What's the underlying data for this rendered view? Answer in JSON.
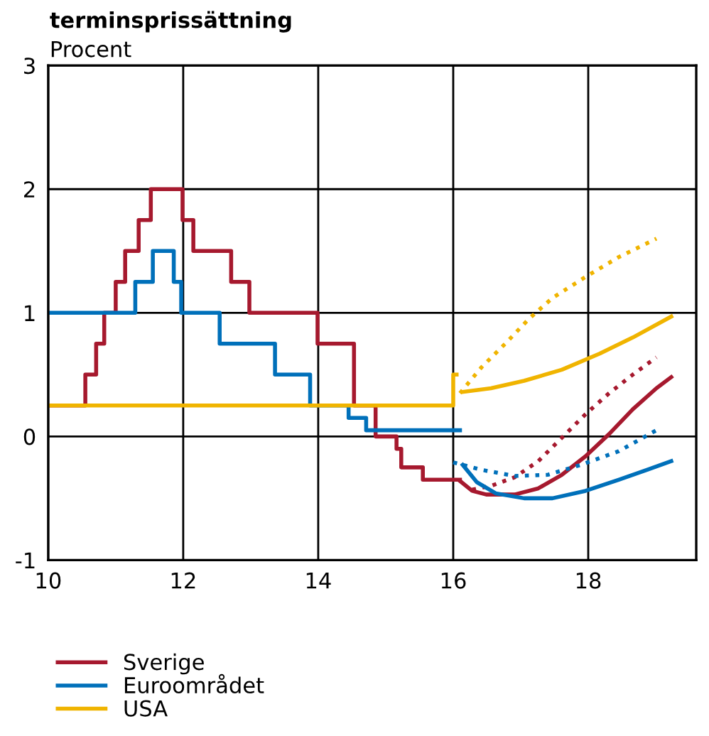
{
  "chart_data": {
    "type": "line",
    "title": "terminsprissättning",
    "ylabel": "Procent",
    "xlim": [
      10,
      19.6
    ],
    "ylim": [
      -1,
      3
    ],
    "xticks": [
      10,
      12,
      14,
      16,
      18
    ],
    "yticks": [
      -1,
      0,
      1,
      2,
      3
    ],
    "grid": true,
    "legend": "bottom left",
    "marker": "none",
    "series": [
      {
        "name": "Sverige",
        "type": "step",
        "color": "#a6192e",
        "line_style": "solid",
        "x": [
          10,
          10.55,
          10.71,
          10.83,
          11.0,
          11.14,
          11.34,
          11.52,
          11.99,
          12.15,
          12.71,
          12.98,
          13.99,
          14.53,
          14.85,
          15.16,
          15.23,
          15.55,
          16.1
        ],
        "values": [
          0.25,
          0.5,
          0.75,
          1.0,
          1.25,
          1.5,
          1.75,
          2.0,
          1.75,
          1.5,
          1.25,
          1.0,
          0.75,
          0.25,
          0,
          -0.1,
          -0.25,
          -0.35,
          -0.35
        ]
      },
      {
        "name": "Euroområdet",
        "type": "step",
        "color": "#0070ba",
        "line_style": "solid",
        "x": [
          10,
          11.29,
          11.55,
          11.86,
          11.97,
          12.54,
          13.36,
          13.88,
          14.45,
          14.71,
          16.1
        ],
        "values": [
          1.0,
          1.25,
          1.5,
          1.25,
          1.0,
          0.75,
          0.5,
          0.25,
          0.15,
          0.05,
          0.05
        ]
      },
      {
        "name": "USA",
        "type": "step",
        "color": "#f0b400",
        "line_style": "solid",
        "x": [
          10,
          16.0,
          16.05
        ],
        "values": [
          0.25,
          0.5,
          0.5
        ]
      },
      {
        "color": "#a6192e",
        "line_style": "solid",
        "x": [
          16.1,
          16.28,
          16.49,
          16.91,
          17.26,
          17.61,
          17.96,
          18.31,
          18.66,
          19.01,
          19.23
        ],
        "values": [
          -0.36,
          -0.44,
          -0.47,
          -0.47,
          -0.42,
          -0.31,
          -0.16,
          0.02,
          0.22,
          0.39,
          0.48
        ]
      },
      {
        "color": "#a6192e",
        "line_style": "dotted",
        "x": [
          16.28,
          16.56,
          16.91,
          17.26,
          17.61,
          17.96,
          18.31,
          18.66,
          19.01
        ],
        "values": [
          -0.43,
          -0.4,
          -0.33,
          -0.2,
          -0.01,
          0.18,
          0.35,
          0.5,
          0.64
        ]
      },
      {
        "color": "#0070ba",
        "line_style": "solid",
        "x": [
          16.14,
          16.35,
          16.63,
          17.05,
          17.47,
          17.96,
          18.45,
          18.87,
          19.23
        ],
        "values": [
          -0.23,
          -0.37,
          -0.46,
          -0.5,
          -0.5,
          -0.44,
          -0.35,
          -0.27,
          -0.2
        ]
      },
      {
        "color": "#0070ba",
        "line_style": "dotted",
        "x": [
          16.0,
          16.42,
          16.91,
          17.4,
          17.89,
          18.45,
          19.01
        ],
        "values": [
          -0.21,
          -0.27,
          -0.32,
          -0.31,
          -0.23,
          -0.12,
          0.05
        ]
      },
      {
        "color": "#f0b400",
        "line_style": "solid",
        "x": [
          16.14,
          16.56,
          17.05,
          17.61,
          18.17,
          18.66,
          19.23
        ],
        "values": [
          0.36,
          0.39,
          0.45,
          0.54,
          0.67,
          0.8,
          0.97
        ]
      },
      {
        "color": "#f0b400",
        "line_style": "dotted",
        "x": [
          16.1,
          16.42,
          16.77,
          17.12,
          17.47,
          17.96,
          18.45,
          19.01
        ],
        "values": [
          0.35,
          0.56,
          0.75,
          0.95,
          1.12,
          1.29,
          1.45,
          1.6
        ]
      }
    ]
  }
}
